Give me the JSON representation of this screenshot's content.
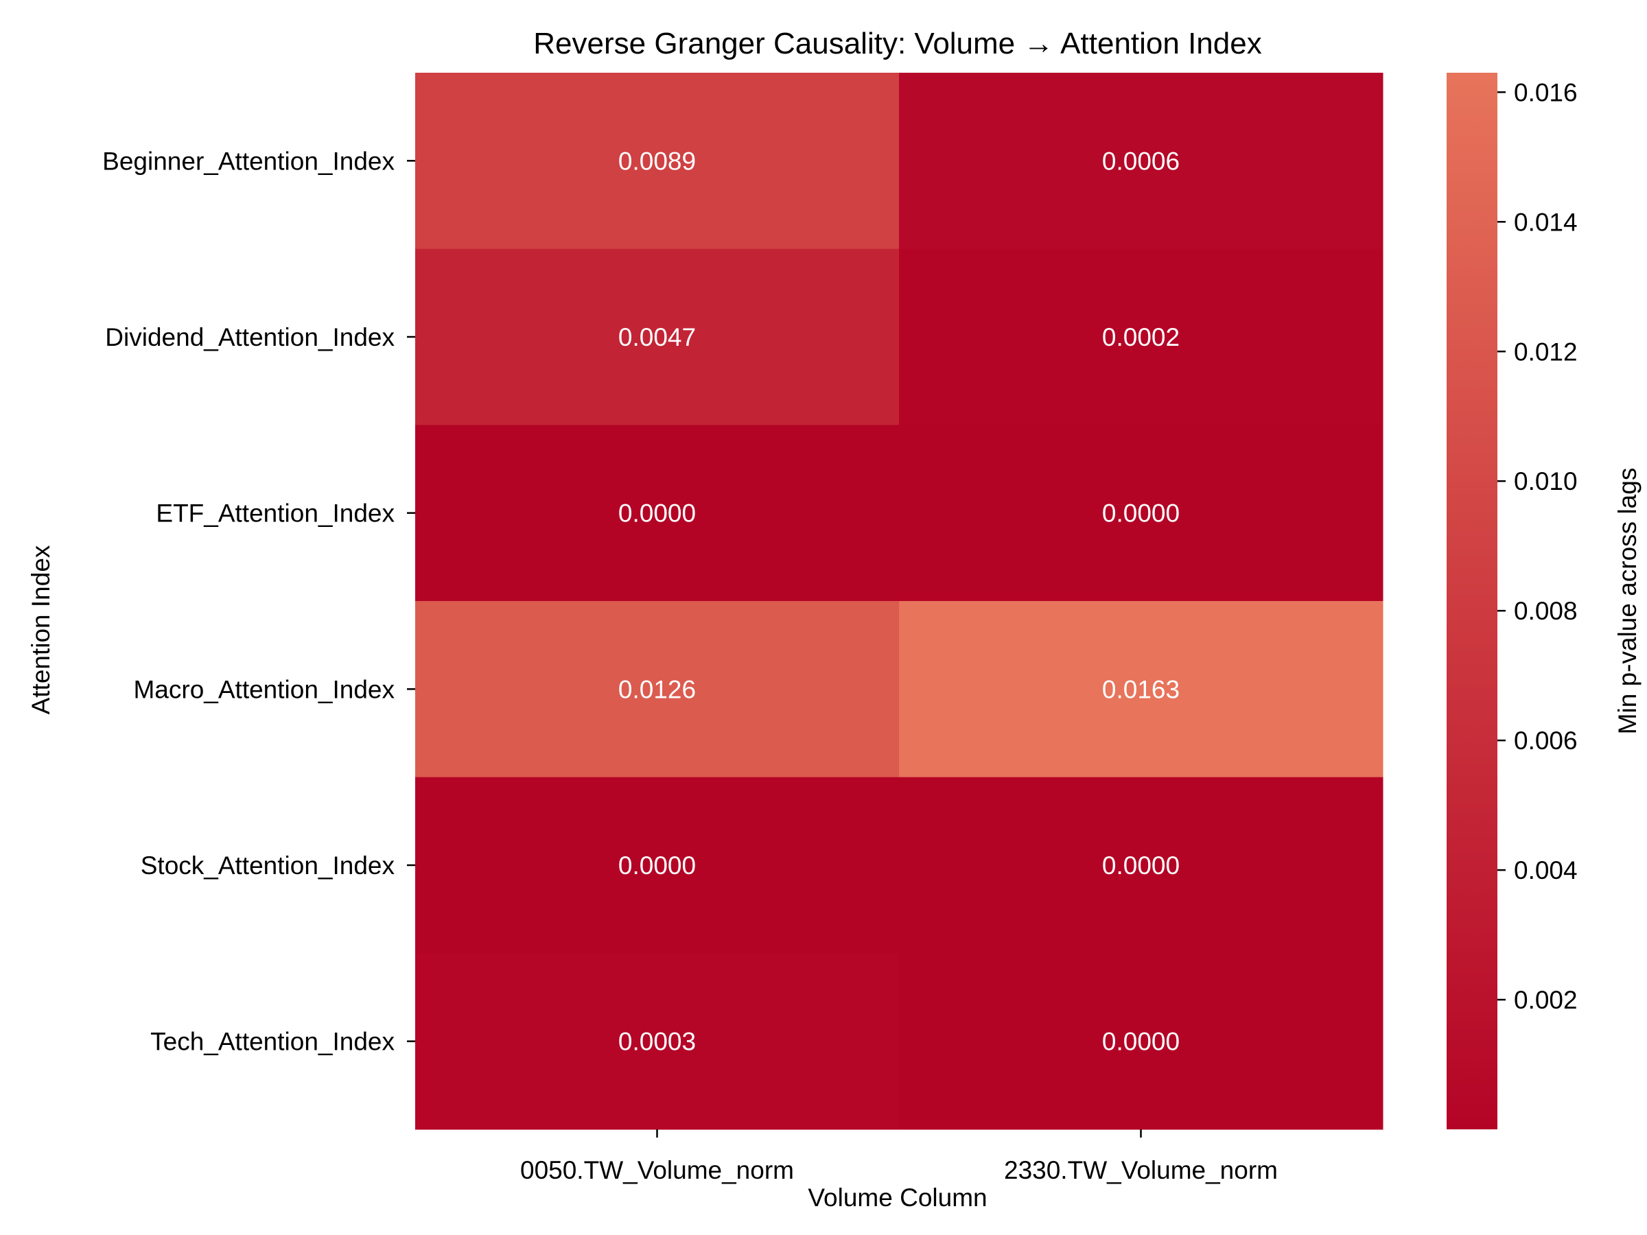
{
  "chart_data": {
    "type": "heatmap",
    "title": "Reverse Granger Causality: Volume → Attention Index",
    "xlabel": "Volume Column",
    "ylabel": "Attention Index",
    "x_categories": [
      "0050.TW_Volume_norm",
      "2330.TW_Volume_norm"
    ],
    "y_categories": [
      "Beginner_Attention_Index",
      "Dividend_Attention_Index",
      "ETF_Attention_Index",
      "Macro_Attention_Index",
      "Stock_Attention_Index",
      "Tech_Attention_Index"
    ],
    "values": [
      [
        0.0089,
        0.0006
      ],
      [
        0.0047,
        0.0002
      ],
      [
        0.0,
        0.0
      ],
      [
        0.0126,
        0.0163
      ],
      [
        0.0,
        0.0
      ],
      [
        0.0003,
        0.0
      ]
    ],
    "cell_labels": [
      [
        "0.0089",
        "0.0006"
      ],
      [
        "0.0047",
        "0.0002"
      ],
      [
        "0.0000",
        "0.0000"
      ],
      [
        "0.0126",
        "0.0163"
      ],
      [
        "0.0000",
        "0.0000"
      ],
      [
        "0.0003",
        "0.0000"
      ]
    ],
    "colorbar": {
      "label": "Min p-value across lags",
      "range": [
        0.0,
        0.0163
      ],
      "ticks": [
        0.002,
        0.004,
        0.006,
        0.008,
        0.01,
        0.012,
        0.014,
        0.016
      ],
      "tick_labels": [
        "0.002",
        "0.004",
        "0.006",
        "0.008",
        "0.010",
        "0.012",
        "0.014",
        "0.016"
      ],
      "color_low": "#b40426",
      "color_high": "#e7745b"
    },
    "grid": false
  }
}
